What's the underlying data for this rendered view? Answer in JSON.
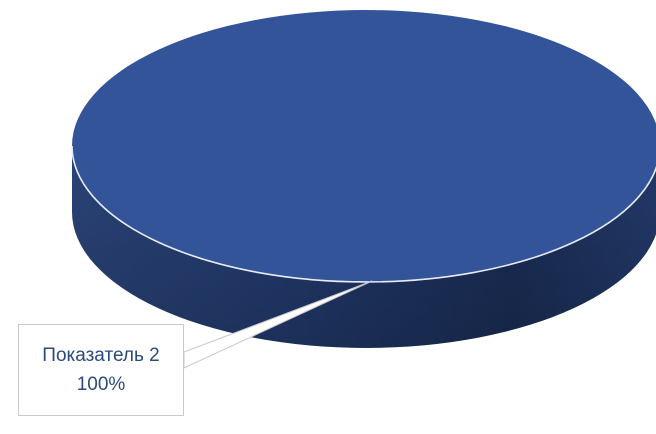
{
  "chart_data": {
    "type": "pie",
    "categories": [
      "Показатель 2"
    ],
    "values": [
      100
    ],
    "data_labels": [
      {
        "category": "Показатель 2",
        "percent": "100%"
      }
    ],
    "title": "",
    "legend": "none",
    "colors": {
      "top": "#34549a",
      "side_dark": "#1a2d55",
      "side_mid": "#223a6d",
      "edge": "#e6ecf7",
      "label_text": "#2c4a7a",
      "label_border": "#c9c9c9"
    }
  }
}
